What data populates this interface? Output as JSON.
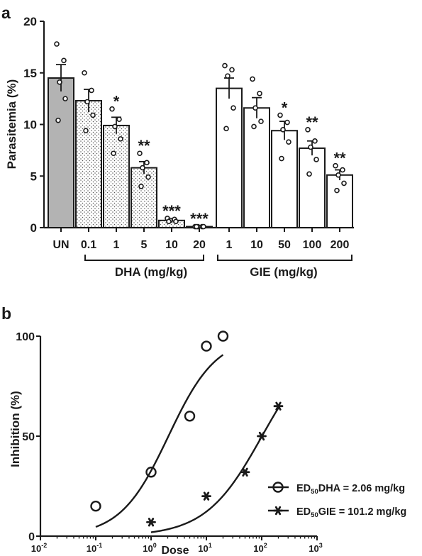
{
  "chart_data": [
    {
      "panel": "a",
      "type": "bar",
      "ylabel": "Parasitemia (%)",
      "ylim": [
        0,
        20
      ],
      "yticks": [
        0,
        5,
        10,
        15,
        20
      ],
      "categories": [
        "UN",
        "0.1",
        "1",
        "5",
        "10",
        "20",
        "1",
        "10",
        "50",
        "100",
        "200"
      ],
      "groups": [
        {
          "label": "DHA (mg/kg)",
          "categories": [
            1,
            2,
            3,
            4,
            5
          ]
        },
        {
          "label": "GIE (mg/kg)",
          "categories": [
            6,
            7,
            8,
            9,
            10
          ]
        }
      ],
      "values": [
        14.5,
        12.3,
        9.9,
        5.8,
        0.7,
        0.1,
        13.5,
        11.6,
        9.4,
        7.7,
        5.1
      ],
      "sem": [
        1.3,
        1.1,
        0.8,
        0.6,
        0.1,
        0.05,
        1.0,
        1.0,
        0.9,
        0.7,
        0.5
      ],
      "points": [
        [
          17.8,
          16.2,
          14.1,
          12.5,
          10.4
        ],
        [
          15.0,
          13.3,
          12.2,
          10.9,
          9.4
        ],
        [
          11.5,
          10.5,
          9.8,
          8.6,
          7.2
        ],
        [
          7.2,
          6.3,
          5.8,
          4.9,
          4.0
        ],
        [
          0.9,
          0.8,
          0.7,
          0.6,
          0.6
        ],
        [
          0.1,
          0.1,
          0.1,
          0.1,
          0.1
        ],
        [
          15.7,
          15.3,
          14.7,
          11.6,
          9.6
        ],
        [
          14.4,
          13.0,
          11.6,
          10.3,
          9.8
        ],
        [
          10.9,
          10.2,
          9.5,
          8.3,
          6.7
        ],
        [
          9.5,
          8.4,
          7.8,
          6.6,
          5.2
        ],
        [
          6.0,
          5.6,
          5.1,
          4.3,
          3.6
        ]
      ],
      "significance": [
        "",
        "",
        "*",
        "**",
        "***",
        "***",
        "",
        "",
        "*",
        "**",
        "**"
      ],
      "fills": [
        "gray",
        "dotted",
        "dotted",
        "dotted",
        "dotted",
        "dotted",
        "white",
        "white",
        "white",
        "white",
        "white"
      ],
      "colors": {
        "gray": "#b3b3b3",
        "dots": "#555555",
        "ink": "#1a1a1a"
      }
    },
    {
      "panel": "b",
      "type": "scatter",
      "xlabel": "Dose",
      "ylabel": "Inhibition (%)",
      "xscale": "log",
      "xlim": [
        0.01,
        1000
      ],
      "xticks": [
        {
          "base": "10",
          "exp": "-2"
        },
        {
          "base": "10",
          "exp": "-1"
        },
        {
          "base": "10",
          "exp": "0"
        },
        {
          "base": "10",
          "exp": "1"
        },
        {
          "base": "10",
          "exp": "2"
        },
        {
          "base": "10",
          "exp": "3"
        }
      ],
      "ylim": [
        0,
        100
      ],
      "yticks": [
        0,
        50,
        100
      ],
      "legend_position": "right",
      "series": [
        {
          "name_prefix": "ED",
          "name_sub": "50",
          "name_rest": "DHA = 2.06 mg/kg",
          "marker": "circle",
          "x": [
            0.1,
            1,
            5,
            10,
            20
          ],
          "y": [
            15,
            32,
            60,
            95,
            100
          ],
          "ed50": 2.06,
          "hill": 1.0,
          "curve_range": [
            0.1,
            20
          ]
        },
        {
          "name_prefix": "ED",
          "name_sub": "50",
          "name_rest": "GIE = 101.2 mg/kg",
          "marker": "asterisk",
          "x": [
            1,
            10,
            50,
            100,
            200
          ],
          "y": [
            7,
            20,
            32,
            50,
            65
          ],
          "ed50": 101.2,
          "hill": 0.85,
          "curve_range": [
            1,
            200
          ]
        }
      ]
    }
  ]
}
